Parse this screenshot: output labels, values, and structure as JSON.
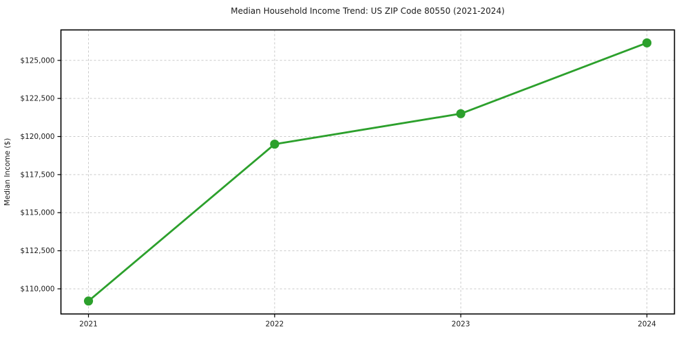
{
  "chart_data": {
    "type": "line",
    "title": "Median Household Income Trend: US ZIP Code 80550 (2021-2024)",
    "xlabel": "",
    "ylabel": "Median Income ($)",
    "x_labels": [
      "2021",
      "2022",
      "2023",
      "2024"
    ],
    "values": [
      109200,
      119500,
      121500,
      126150
    ],
    "axes": {
      "ylim": [
        108350,
        127000
      ],
      "yticks": [
        110000,
        112500,
        115000,
        117500,
        120000,
        122500,
        125000
      ],
      "ytick_labels": [
        "$110,000",
        "$112,500",
        "$115,000",
        "$117,500",
        "$120,000",
        "$122,500",
        "$125,000"
      ],
      "grid": true,
      "grid_style": "dashed",
      "legend": "none"
    },
    "style": {
      "line_color": "#2ca02c",
      "marker": "circle",
      "marker_color": "#2ca02c",
      "grid_color": "#c9c9c9",
      "spine_color": "#000000",
      "tick_label_color": "#1a1a1a",
      "background": "#ffffff"
    }
  }
}
